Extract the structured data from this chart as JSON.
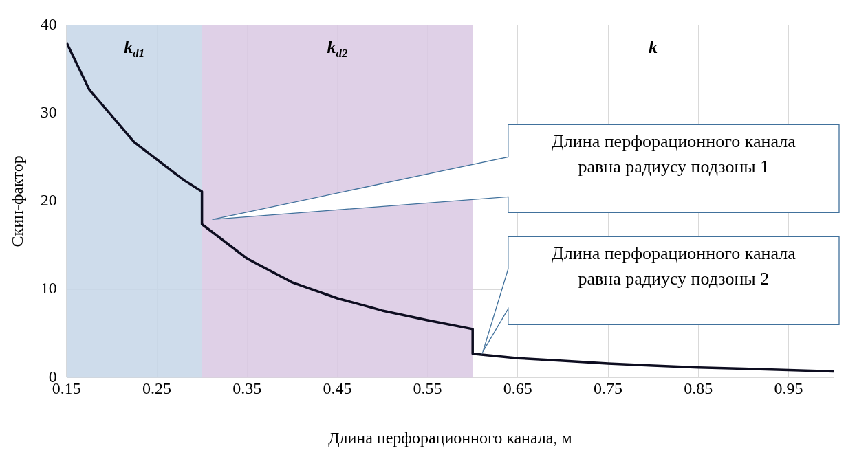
{
  "chart_data": {
    "type": "line",
    "xlabel": "Длина перфорационного канала, м",
    "ylabel": "Скин-фактор",
    "series": [
      {
        "color": "#0d0d20",
        "x": [
          0.15,
          0.175,
          0.225,
          0.28,
          0.3,
          0.3,
          0.35,
          0.4,
          0.45,
          0.5,
          0.55,
          0.6,
          0.6,
          0.65,
          0.7,
          0.75,
          0.8,
          0.85,
          0.9,
          0.95,
          1.0
        ],
        "values": [
          38,
          32.7,
          26.7,
          22.4,
          21.1,
          17.4,
          13.5,
          10.8,
          9.0,
          7.6,
          6.5,
          5.5,
          2.7,
          2.2,
          1.9,
          1.6,
          1.35,
          1.15,
          1.0,
          0.85,
          0.7
        ]
      }
    ],
    "xlim": [
      0.15,
      1.0
    ],
    "xticks": [
      0.15,
      0.25,
      0.35,
      0.45,
      0.55,
      0.65,
      0.75,
      0.85,
      0.95
    ],
    "ylim": [
      0,
      40
    ],
    "yticks": [
      0,
      10,
      20,
      30,
      40
    ],
    "grid": true,
    "marker": "none",
    "line_style": "solid",
    "bands": [
      {
        "axis": "x",
        "from": 0.15,
        "to": 0.3,
        "label": "k$_{d1}$",
        "color": "#c5d6e8"
      },
      {
        "axis": "x",
        "from": 0.3,
        "to": 0.6,
        "label": "k$_{d2}$",
        "color": "#d9c8e3"
      }
    ],
    "annotations": [
      "k",
      "Длина перфорационного канала равна радиусу подзоны 1",
      "Длина перфорационного канала равна радиусу подзоны 2"
    ]
  }
}
